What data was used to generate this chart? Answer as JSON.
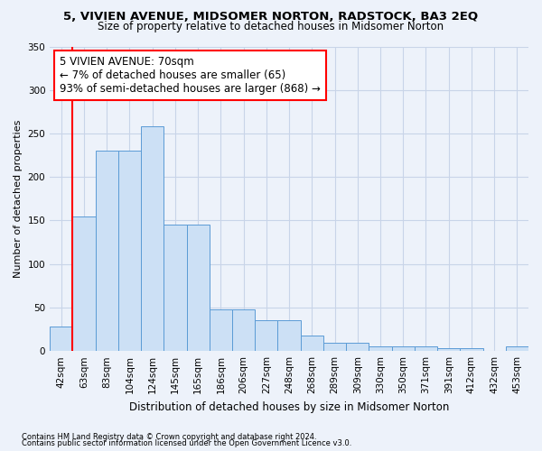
{
  "title": "5, VIVIEN AVENUE, MIDSOMER NORTON, RADSTOCK, BA3 2EQ",
  "subtitle": "Size of property relative to detached houses in Midsomer Norton",
  "xlabel": "Distribution of detached houses by size in Midsomer Norton",
  "ylabel": "Number of detached properties",
  "footnote1": "Contains HM Land Registry data © Crown copyright and database right 2024.",
  "footnote2": "Contains public sector information licensed under the Open Government Licence v3.0.",
  "categories": [
    "42sqm",
    "63sqm",
    "83sqm",
    "104sqm",
    "124sqm",
    "145sqm",
    "165sqm",
    "186sqm",
    "206sqm",
    "227sqm",
    "248sqm",
    "268sqm",
    "289sqm",
    "309sqm",
    "330sqm",
    "350sqm",
    "371sqm",
    "391sqm",
    "412sqm",
    "432sqm",
    "453sqm"
  ],
  "values": [
    28,
    155,
    230,
    230,
    258,
    145,
    145,
    48,
    48,
    35,
    35,
    18,
    10,
    10,
    5,
    5,
    5,
    3,
    3,
    0,
    5
  ],
  "bar_color": "#cce0f5",
  "bar_edge_color": "#5b9bd5",
  "vline_x_index": 1,
  "annotation_text": "5 VIVIEN AVENUE: 70sqm\n← 7% of detached houses are smaller (65)\n93% of semi-detached houses are larger (868) →",
  "annotation_box_color": "white",
  "annotation_box_edge": "red",
  "vline_color": "red",
  "ylim": [
    0,
    350
  ],
  "yticks": [
    0,
    50,
    100,
    150,
    200,
    250,
    300,
    350
  ],
  "grid_color": "#c8d4e8",
  "bg_color": "#edf2fa"
}
